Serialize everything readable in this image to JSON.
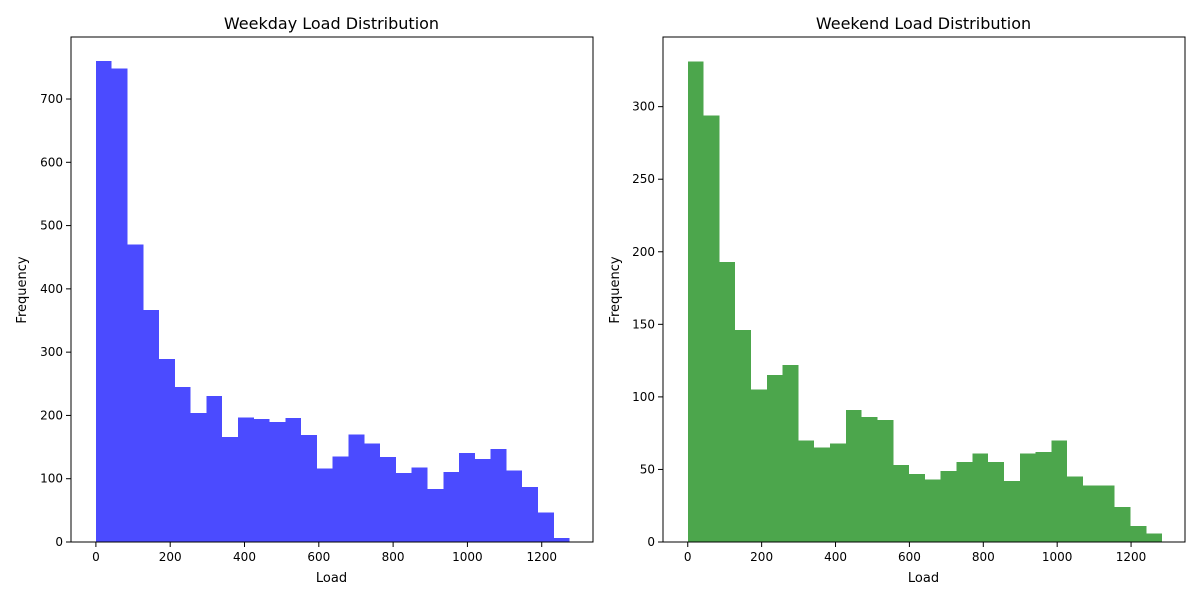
{
  "chart_data": [
    {
      "type": "bar",
      "title": "Weekday Load Distribution",
      "xlabel": "Load",
      "ylabel": "Frequency",
      "color": "#4b4bff",
      "bin_width": 42.5,
      "x_start": 0,
      "xlim": [
        -67,
        1338
      ],
      "ylim": [
        0,
        798
      ],
      "xticks": [
        0,
        200,
        400,
        600,
        800,
        1000,
        1200
      ],
      "yticks": [
        0,
        100,
        200,
        300,
        400,
        500,
        600,
        700
      ],
      "values": [
        760,
        748,
        470,
        367,
        289,
        245,
        204,
        231,
        166,
        197,
        194,
        190,
        196,
        169,
        116,
        135,
        170,
        156,
        134,
        109,
        118,
        84,
        111,
        141,
        131,
        147,
        113,
        87,
        47,
        6
      ]
    },
    {
      "type": "bar",
      "title": "Weekend Load Distribution",
      "xlabel": "Load",
      "ylabel": "Frequency",
      "color": "#4ca64c",
      "bin_width": 42.8,
      "x_start": 0,
      "xlim": [
        -67,
        1346
      ],
      "ylim": [
        0,
        348
      ],
      "xticks": [
        0,
        200,
        400,
        600,
        800,
        1000,
        1200
      ],
      "yticks": [
        0,
        50,
        100,
        150,
        200,
        250,
        300
      ],
      "values": [
        331,
        294,
        193,
        146,
        105,
        115,
        122,
        70,
        65,
        68,
        91,
        86,
        84,
        53,
        47,
        43,
        49,
        55,
        61,
        55,
        42,
        61,
        62,
        70,
        45,
        39,
        39,
        24,
        11,
        6
      ]
    }
  ]
}
